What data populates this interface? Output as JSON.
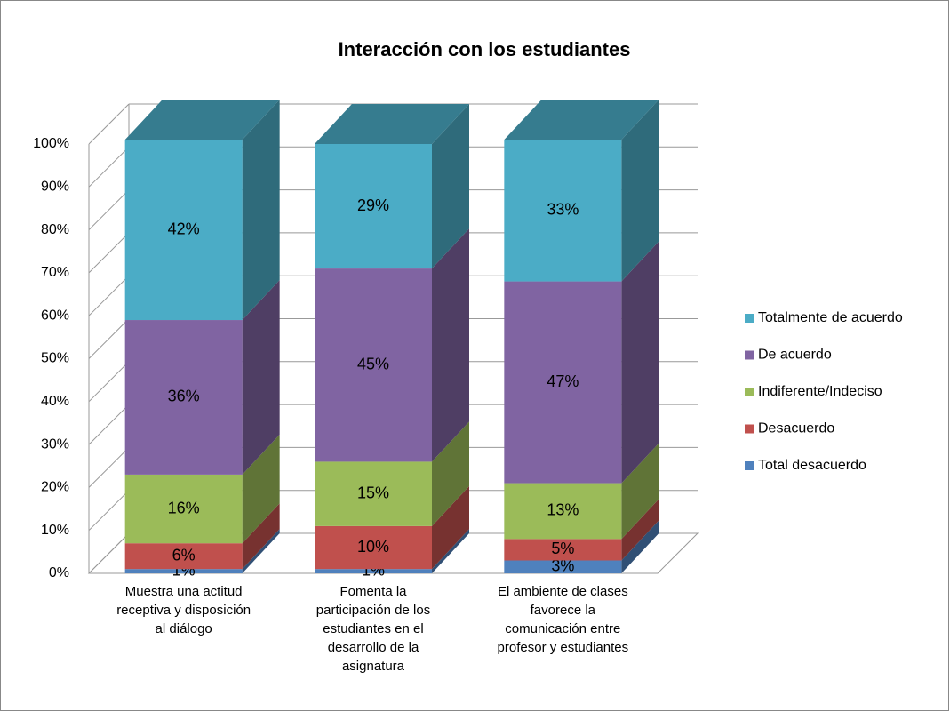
{
  "chart_data": {
    "type": "bar3d_stacked",
    "title": "Interacción con los estudiantes",
    "categories": [
      "Muestra una actitud receptiva y disposición al diálogo",
      "Fomenta la participación de los estudiantes en el desarrollo de la asignatura",
      "El ambiente de clases favorece la comunicación entre profesor y estudiantes"
    ],
    "series": [
      {
        "name": "Total desacuerdo",
        "color": "#4f81bd",
        "values": [
          1,
          1,
          3
        ],
        "value_labels": [
          "1%",
          "1%",
          "3%"
        ]
      },
      {
        "name": "Desacuerdo",
        "color": "#c0504d",
        "values": [
          6,
          10,
          5
        ],
        "value_labels": [
          "6%",
          "10%",
          "5%"
        ]
      },
      {
        "name": "Indiferente/Indeciso",
        "color": "#9bbb59",
        "values": [
          16,
          15,
          13
        ],
        "value_labels": [
          "16%",
          "15%",
          "13%"
        ]
      },
      {
        "name": "De acuerdo",
        "color": "#8064a2",
        "values": [
          36,
          45,
          47
        ],
        "value_labels": [
          "36%",
          "45%",
          "47%"
        ]
      },
      {
        "name": "Totalmente de acuerdo",
        "color": "#4bacc6",
        "values": [
          42,
          29,
          33
        ],
        "value_labels": [
          "42%",
          "29%",
          "33%"
        ]
      }
    ],
    "ylim": [
      0,
      100
    ],
    "yticks": [
      {
        "value": 0,
        "label": "0%"
      },
      {
        "value": 10,
        "label": "10%"
      },
      {
        "value": 20,
        "label": "20%"
      },
      {
        "value": 30,
        "label": "30%"
      },
      {
        "value": 40,
        "label": "40%"
      },
      {
        "value": 50,
        "label": "50%"
      },
      {
        "value": 60,
        "label": "60%"
      },
      {
        "value": 70,
        "label": "70%"
      },
      {
        "value": 80,
        "label": "80%"
      },
      {
        "value": 90,
        "label": "90%"
      },
      {
        "value": 100,
        "label": "100%"
      }
    ],
    "grid": true,
    "legend": "right"
  }
}
